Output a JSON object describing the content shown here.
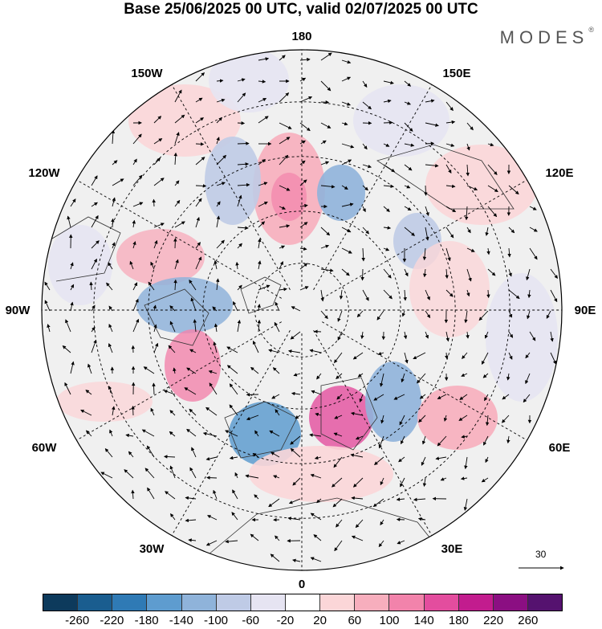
{
  "title": "Base 25/06/2025 00 UTC, valid 02/07/2025 00 UTC",
  "brand": {
    "name": "MODES",
    "mark": "®"
  },
  "map": {
    "projection": "north-polar-stereographic",
    "longitude_labels": {
      "top": "180",
      "bottom": "0",
      "left": "90W",
      "right": "90E",
      "upper_left": "150W",
      "upper_right": "150E",
      "mid_upper_left": "120W",
      "mid_upper_right": "120E",
      "mid_lower_left": "60W",
      "mid_lower_right": "60E",
      "lower_left": "30W",
      "lower_right": "30E"
    },
    "reference_vector": {
      "label": "30",
      "value": 30
    },
    "grid": true,
    "coastlines": true
  },
  "colorbar": {
    "colors": [
      "#0d3a5c",
      "#1a5d8f",
      "#2f7ab5",
      "#5e9ccf",
      "#8fb3da",
      "#bfcbe6",
      "#e6e4f2",
      "#ffffff",
      "#fbd6d8",
      "#f7aebd",
      "#f283ab",
      "#e34d9e",
      "#c21c8e",
      "#8b0f82",
      "#55126f"
    ],
    "tick_labels": [
      "-260",
      "-220",
      "-180",
      "-140",
      "-100",
      "-60",
      "-20",
      "20",
      "60",
      "100",
      "140",
      "180",
      "220",
      "260"
    ]
  }
}
